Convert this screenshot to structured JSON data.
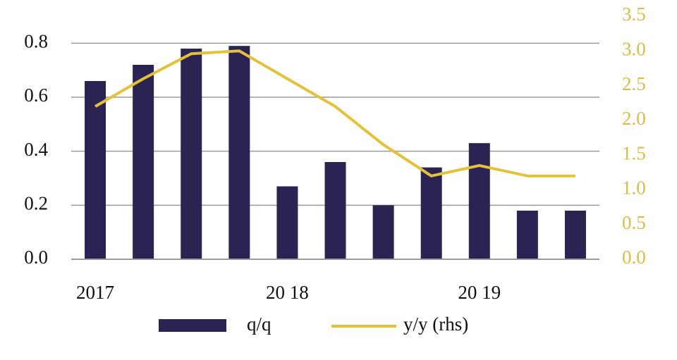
{
  "chart_data": {
    "type": "bar-line",
    "categories": [
      "2017",
      null,
      null,
      null,
      "20 18",
      null,
      null,
      null,
      "20 19",
      null,
      null
    ],
    "series": [
      {
        "name": "q/q",
        "type": "bar",
        "color": "#2b2452",
        "values": [
          0.66,
          0.72,
          0.78,
          0.79,
          0.27,
          0.36,
          0.2,
          0.34,
          0.43,
          0.18,
          0.18
        ]
      },
      {
        "name": "y/y (rhs)",
        "type": "line",
        "axis": "y2",
        "color": "#e3c13a",
        "values": [
          2.2,
          2.6,
          2.96,
          3.0,
          2.6,
          2.2,
          1.65,
          1.2,
          1.35,
          1.2,
          1.2
        ]
      }
    ],
    "ylim": [
      0,
      0.9
    ],
    "yticks": [
      {
        "value": 0,
        "label": "0.0"
      },
      0.2,
      0.4,
      0.6,
      0.8
    ],
    "y2lim": [
      0,
      3.5
    ],
    "y2ticks": [
      {
        "value": 0,
        "label": "0.0"
      },
      0.5,
      {
        "value": 1,
        "label": "1.0"
      },
      1.5,
      {
        "value": 2,
        "label": "2.0"
      },
      2.5,
      {
        "value": 3,
        "label": "3.0"
      },
      3.5
    ],
    "y2color": "#d8bd4a",
    "grid": true
  }
}
